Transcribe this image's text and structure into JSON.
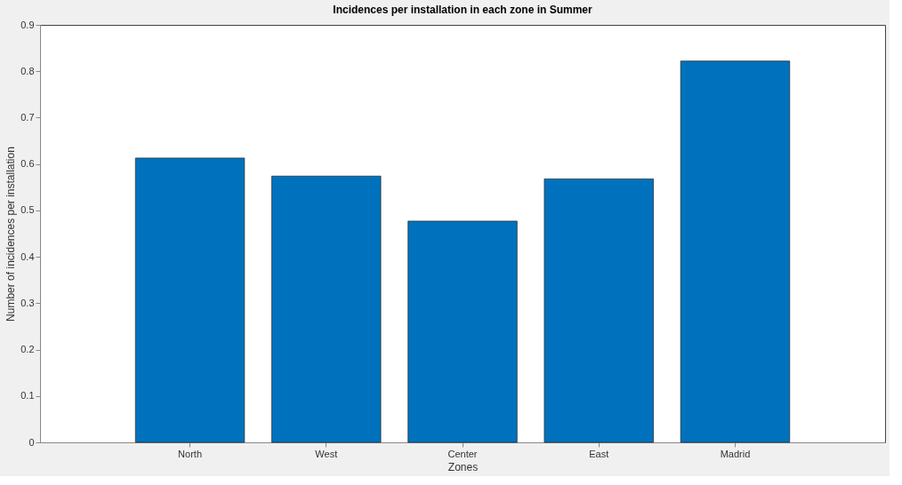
{
  "chart_data": {
    "type": "bar",
    "title": "Incidences per installation in each zone in Summer",
    "xlabel": "Zones",
    "ylabel": "Number of incidences per installation",
    "categories": [
      "North",
      "West",
      "Center",
      "East",
      "Madrid"
    ],
    "values": [
      0.613,
      0.574,
      0.477,
      0.568,
      0.822
    ],
    "color": "#0072bd",
    "ylim": [
      0,
      0.9
    ],
    "yticks": [
      0,
      0.1,
      0.2,
      0.3,
      0.4,
      0.5,
      0.6,
      0.7,
      0.8,
      0.9
    ],
    "grid": false
  }
}
